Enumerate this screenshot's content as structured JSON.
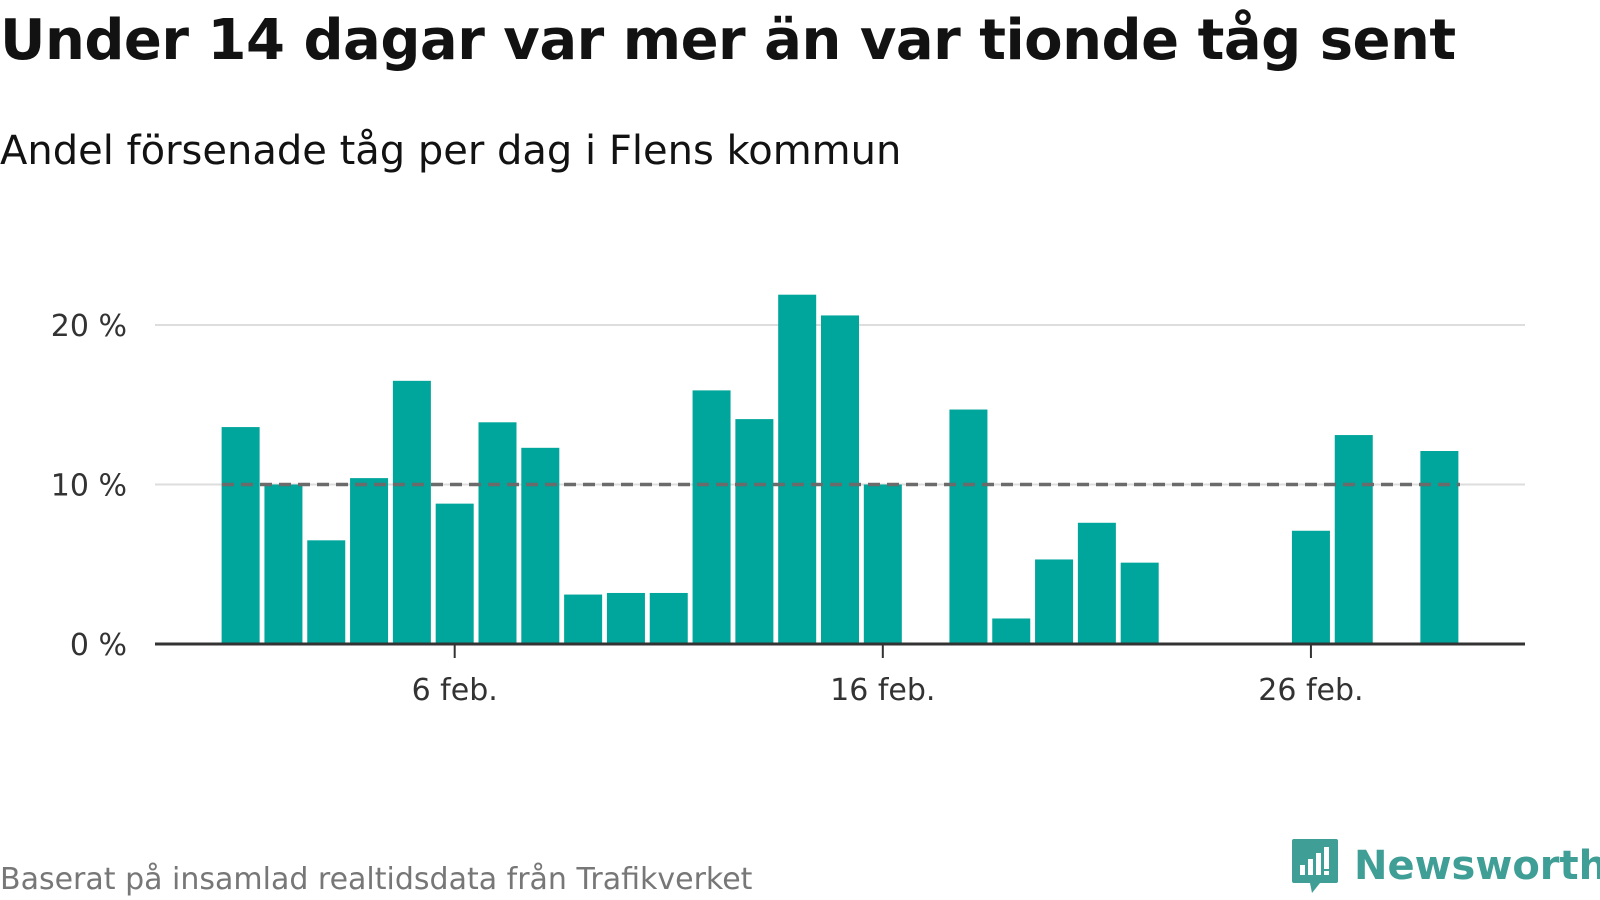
{
  "header": {
    "title": "Under 14 dagar var mer än var tionde tåg sent",
    "subtitle": "Andel försenade tåg per dag i Flens kommun"
  },
  "footer": {
    "source": "Baserat på insamlad realtidsdata från Trafikverket",
    "brand": "Newsworthy"
  },
  "colors": {
    "bar": "#00a59b",
    "reference_line": "#6b6b6b",
    "gridline": "#dddddd",
    "axis": "#333333",
    "brand": "#3f9e95"
  },
  "chart_data": {
    "type": "bar",
    "title": "Under 14 dagar var mer än var tionde tåg sent",
    "subtitle": "Andel försenade tåg per dag i Flens kommun",
    "xlabel": "",
    "ylabel": "",
    "x_unit": "day of February",
    "x": [
      1,
      2,
      3,
      4,
      5,
      6,
      7,
      8,
      9,
      10,
      11,
      12,
      13,
      14,
      15,
      16,
      17,
      18,
      19,
      20,
      21,
      22,
      23,
      24,
      25,
      26,
      27,
      28,
      29
    ],
    "values": [
      13.6,
      10.0,
      6.5,
      10.4,
      16.5,
      8.8,
      13.9,
      12.3,
      3.1,
      3.2,
      3.2,
      15.9,
      14.1,
      21.9,
      20.6,
      10.0,
      null,
      14.7,
      1.6,
      5.3,
      7.6,
      5.1,
      null,
      null,
      null,
      7.1,
      13.1,
      null,
      12.1
    ],
    "x_ticks": [
      {
        "day": 6,
        "label": "6 feb."
      },
      {
        "day": 16,
        "label": "16 feb."
      },
      {
        "day": 26,
        "label": "26 feb."
      }
    ],
    "y_ticks": [
      {
        "value": 0,
        "label": "0 %"
      },
      {
        "value": 10,
        "label": "10 %"
      },
      {
        "value": 20,
        "label": "20 %"
      }
    ],
    "ylim": [
      0,
      20
    ],
    "xlim": [
      -1,
      31
    ],
    "reference_line": {
      "value": 10,
      "style": "dashed"
    },
    "grid": true,
    "legend": "none"
  }
}
